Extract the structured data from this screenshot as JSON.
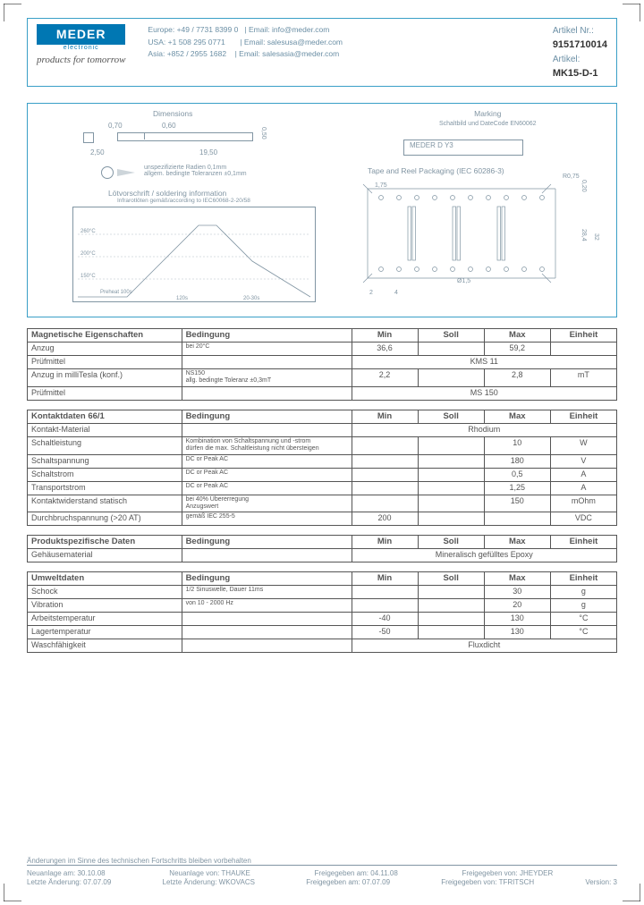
{
  "logo": {
    "line1": "MEDER",
    "line2": "electronic"
  },
  "script": "products for tomorrow",
  "contacts": [
    {
      "region": "Europe:",
      "phone": "+49 / 7731 8399 0",
      "email": "Email: info@meder.com"
    },
    {
      "region": "USA:",
      "phone": "+1 508 295 0771",
      "email": "Email: salesusa@meder.com"
    },
    {
      "region": "Asia:",
      "phone": "+852 / 2955 1682",
      "email": "Email: salesasia@meder.com"
    }
  ],
  "artikel": {
    "lbl1": "Artikel Nr.:",
    "val1": "9151710014",
    "lbl2": "Artikel:",
    "val2": "MK15-D-1"
  },
  "diagram": {
    "dimensions": "Dimensions",
    "marking": "Marking",
    "marking_sub": "Schaltbild und DateCode\nEN60062",
    "marking_box": "MEDER   D    Y3",
    "tape": "Tape and Reel Packaging (IEC 60286-3)",
    "solder": "Lötvorschrift / soldering information",
    "solder_sub": "Infrarotlöten gemäß/according to IEC60068-2-20/58",
    "dim_vals": {
      "a": "0,70",
      "b": "0,60",
      "c": "2,50",
      "d": "19,50",
      "e": "0,50",
      "f": "2,50"
    },
    "unspec": "unspezifizierte Radien 0,1mm\nallgem. bedingte Toleranzen ±0,1mm",
    "tape_vals": {
      "r": "R0,75",
      "a": "0,20",
      "b": "28,4",
      "c": "32",
      "d": "2",
      "e": "4",
      "f": "Ø1,5",
      "g": "1,75",
      "h": "Ø2"
    }
  },
  "tables": {
    "t1": {
      "title": "Magnetische Eigenschaften",
      "cols": [
        "Bedingung",
        "Min",
        "Soll",
        "Max",
        "Einheit"
      ],
      "rows": [
        [
          "Anzug",
          "bei 20°C",
          "36,6",
          "",
          "59,2",
          ""
        ],
        [
          "Prüfmittel",
          "",
          {
            "span": 4,
            "text": "KMS 11"
          }
        ],
        [
          "Anzug in milliTesla (konf.)",
          "NS150\nallg. bedingte Toleranz ±0,3mT",
          "2,2",
          "",
          "2,8",
          "mT"
        ],
        [
          "Prüfmittel",
          "",
          {
            "span": 4,
            "text": "MS 150"
          }
        ]
      ]
    },
    "t2": {
      "title": "Kontaktdaten  66/1",
      "cols": [
        "Bedingung",
        "Min",
        "Soll",
        "Max",
        "Einheit"
      ],
      "rows": [
        [
          "Kontakt-Material",
          "",
          {
            "span": 4,
            "text": "Rhodium"
          }
        ],
        [
          "Schaltleistung",
          "Kombination von Schaltspannung und -strom\ndürfen die max. Schaltleistung nicht übersteigen",
          "",
          "",
          "10",
          "W"
        ],
        [
          "Schaltspannung",
          "DC or Peak AC",
          "",
          "",
          "180",
          "V"
        ],
        [
          "Schaltstrom",
          "DC or Peak AC",
          "",
          "",
          "0,5",
          "A"
        ],
        [
          "Transportstrom",
          "DC or Peak AC",
          "",
          "",
          "1,25",
          "A"
        ],
        [
          "Kontaktwiderstand statisch",
          "bei 40% Übererregung\nAnzugswert",
          "",
          "",
          "150",
          "mOhm"
        ],
        [
          "Durchbruchspannung (>20 AT)",
          "gemäß  IEC 255-5",
          "200",
          "",
          "",
          "VDC"
        ]
      ]
    },
    "t3": {
      "title": "Produktspezifische Daten",
      "cols": [
        "Bedingung",
        "Min",
        "Soll",
        "Max",
        "Einheit"
      ],
      "rows": [
        [
          "Gehäusematerial",
          "",
          {
            "span": 4,
            "text": "Mineralisch gefülltes Epoxy"
          }
        ]
      ]
    },
    "t4": {
      "title": "Umweltdaten",
      "cols": [
        "Bedingung",
        "Min",
        "Soll",
        "Max",
        "Einheit"
      ],
      "rows": [
        [
          "Schock",
          "1/2 Sinuswelle, Dauer 11ms",
          "",
          "",
          "30",
          "g"
        ],
        [
          "Vibration",
          "von  10 - 2000 Hz",
          "",
          "",
          "20",
          "g"
        ],
        [
          "Arbeitstemperatur",
          "",
          "-40",
          "",
          "130",
          "°C"
        ],
        [
          "Lagertemperatur",
          "",
          "-50",
          "",
          "130",
          "°C"
        ],
        [
          "Waschfähigkeit",
          "",
          {
            "span": 4,
            "text": "Fluxdicht"
          }
        ]
      ]
    }
  },
  "footer": {
    "disclaimer": "Änderungen im Sinne des technischen Fortschritts bleiben vorbehalten",
    "rows": [
      [
        "Neuanlage am:",
        "30.10.08",
        "Neuanlage von:",
        "THAUKE",
        "Freigegeben am:",
        "04.11.08",
        "Freigegeben von:",
        "JHEYDER",
        "",
        ""
      ],
      [
        "Letzte Änderung:",
        "07.07.09",
        "Letzte Änderung:",
        "WKOVACS",
        "Freigegeben am:",
        "07.07.09",
        "Freigegeben von:",
        "TFRITSCH",
        "Version:",
        "3"
      ]
    ]
  },
  "colors": {
    "border": "#3a9fc7",
    "logo_bg": "#0077b3",
    "text_muted": "#8195a3"
  }
}
